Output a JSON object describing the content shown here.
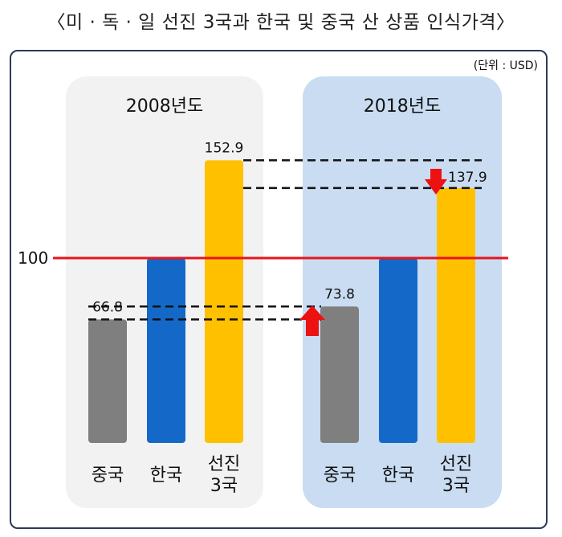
{
  "title": "〈미 · 독 · 일 선진 3국과 한국 및 중국 산 상품 인식가격〉",
  "chart_data": {
    "type": "bar",
    "unit_note": "(단위 : USD)",
    "reference": {
      "value": 100,
      "label": "100",
      "color": "#e8141c"
    },
    "groups": [
      {
        "name": "2008년도",
        "categories": [
          "중국",
          "한국",
          "선진 3국"
        ],
        "category_lines": [
          [
            "중국"
          ],
          [
            "한국"
          ],
          [
            "선진",
            "3국"
          ]
        ],
        "values": [
          66.8,
          100,
          152.9
        ],
        "value_labels": [
          "66.8",
          "",
          "152.9"
        ]
      },
      {
        "name": "2018년도",
        "categories": [
          "중국",
          "한국",
          "선진 3국"
        ],
        "category_lines": [
          [
            "중국"
          ],
          [
            "한국"
          ],
          [
            "선진",
            "3국"
          ]
        ],
        "values": [
          73.8,
          100,
          137.9
        ],
        "value_labels": [
          "73.8",
          "",
          "137.9"
        ]
      }
    ],
    "colors": {
      "중국": "#7f7f7f",
      "한국": "#1469c8",
      "선진 3국": "#ffc000",
      "arrow": "#ee1111"
    },
    "panel_colors": {
      "2008년도": "#f2f2f2",
      "2018년도": "#c9dcf2"
    },
    "ylim": [
      0,
      170
    ]
  }
}
